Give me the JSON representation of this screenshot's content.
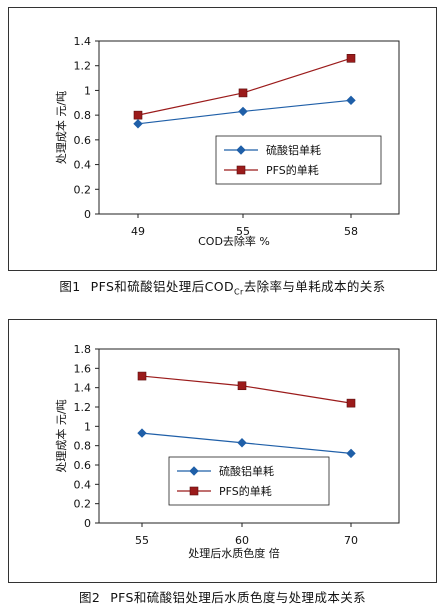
{
  "figures": [
    {
      "caption_number": "图1",
      "caption_main": "PFS和硫酸铝处理后COD",
      "caption_sub": "Cr",
      "caption_rest": "去除率与单耗成本的关系",
      "chart_data": {
        "type": "line",
        "categories": [
          "49",
          "55",
          "58"
        ],
        "series": [
          {
            "name": "硫酸铝单耗",
            "values": [
              0.73,
              0.83,
              0.92
            ],
            "color": "#1f5fa8",
            "marker": "diamond"
          },
          {
            "name": "PFS的单耗",
            "values": [
              0.8,
              0.98,
              1.26
            ],
            "color": "#9b1b1b",
            "marker": "square"
          }
        ],
        "xlabel": "COD去除率 %",
        "ylabel": "处理成本 元/吨",
        "ylim": [
          0,
          1.4
        ],
        "yticks": [
          "0",
          "0.2",
          "0.4",
          "0.6",
          "0.8",
          "1",
          "1.2",
          "1.4"
        ],
        "grid": false,
        "legend_position": "inside-right"
      }
    },
    {
      "caption_number": "图2",
      "caption_main": "PFS和硫酸铝处理后水质色度与处理成本关系",
      "caption_sub": "",
      "caption_rest": "",
      "chart_data": {
        "type": "line",
        "categories": [
          "55",
          "60",
          "70"
        ],
        "series": [
          {
            "name": "硫酸铝单耗",
            "values": [
              0.93,
              0.83,
              0.72
            ],
            "color": "#1f5fa8",
            "marker": "diamond"
          },
          {
            "name": "PFS的单耗",
            "values": [
              1.52,
              1.42,
              1.24
            ],
            "color": "#9b1b1b",
            "marker": "square"
          }
        ],
        "xlabel": "处理后水质色度 倍",
        "ylabel": "处理成本 元/吨",
        "ylim": [
          0,
          1.8
        ],
        "yticks": [
          "0",
          "0.2",
          "0.4",
          "0.6",
          "0.8",
          "1",
          "1.2",
          "1.4",
          "1.6",
          "1.8"
        ],
        "grid": false,
        "legend_position": "inside-bottom-center"
      }
    }
  ]
}
